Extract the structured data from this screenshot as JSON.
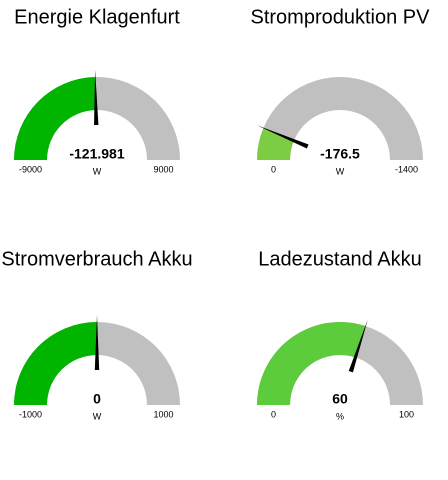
{
  "chart_data": [
    {
      "type": "gauge",
      "title": "Energie Klagenfurt",
      "value": -121.981,
      "unit": "W",
      "ylim": [
        -9000,
        9000
      ],
      "yticks": [
        -9000,
        9000
      ],
      "color": "#00b400",
      "track_color": "#c0c0c0"
    },
    {
      "type": "gauge",
      "title": "Stromproduktion PV",
      "value": -176.5,
      "unit": "W",
      "ylim": [
        0,
        -1400
      ],
      "yticks": [
        0,
        -1400
      ],
      "color": "#7ccc44",
      "track_color": "#c0c0c0"
    },
    {
      "type": "gauge",
      "title": "Stromverbrauch Akku",
      "value": 0,
      "unit": "W",
      "ylim": [
        -1000,
        1000
      ],
      "yticks": [
        -1000,
        1000
      ],
      "color": "#00b400",
      "track_color": "#c0c0c0"
    },
    {
      "type": "gauge",
      "title": "Ladezustand Akku",
      "value": 60,
      "unit": "%",
      "ylim": [
        0,
        100
      ],
      "yticks": [
        0,
        100
      ],
      "color": "#5ccb3c",
      "track_color": "#c0c0c0"
    }
  ]
}
